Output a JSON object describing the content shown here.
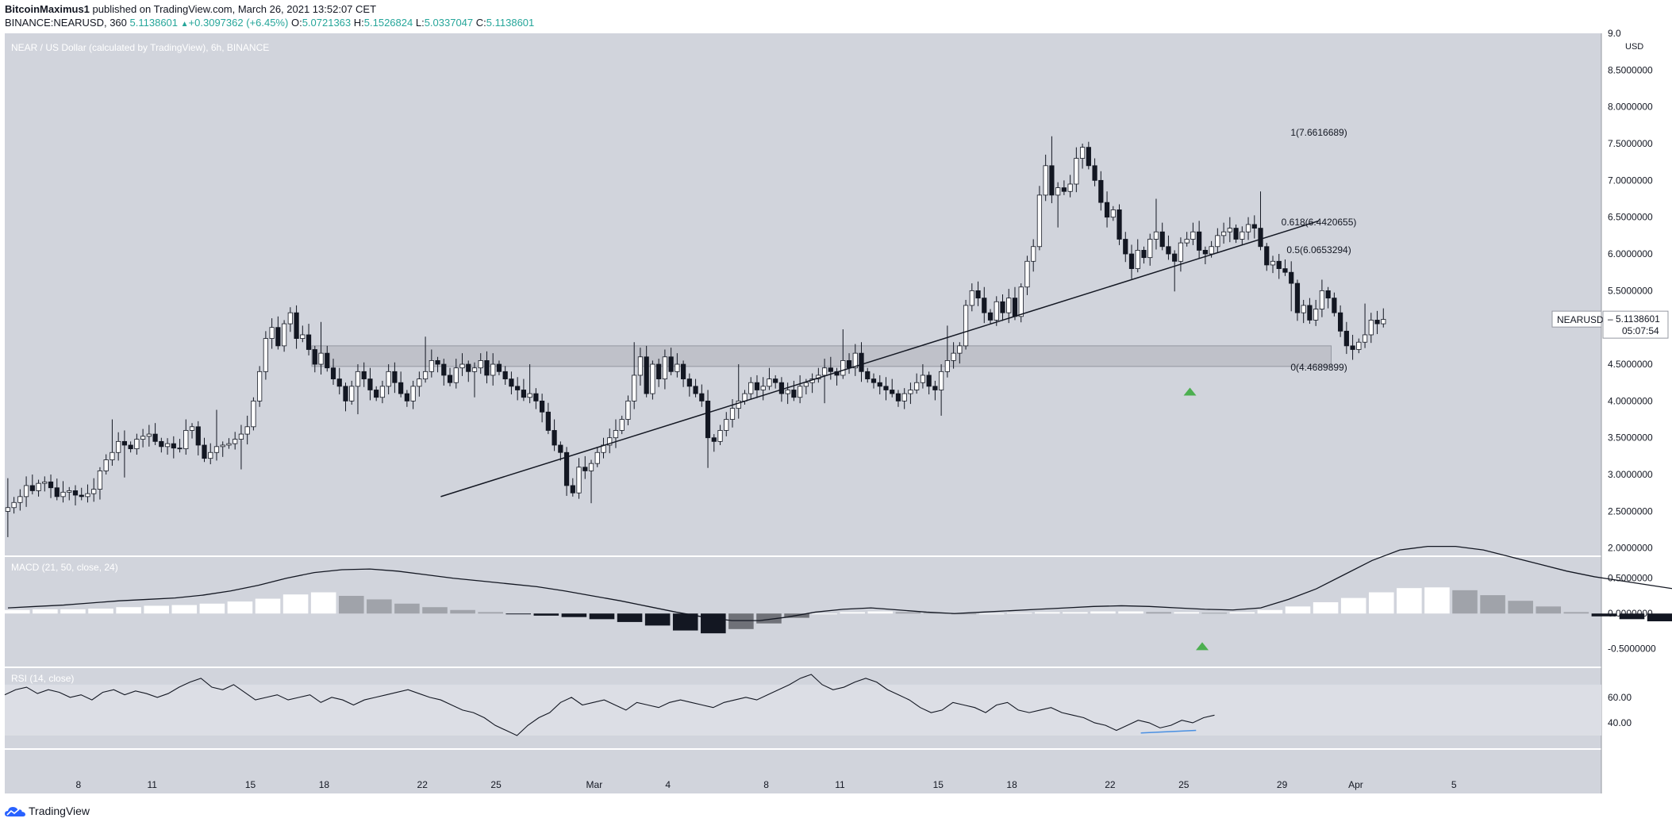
{
  "header": {
    "author": "BitcoinMaximus1",
    "published_text": " published on TradingView.com, March 26, 2021 13:52:07 CET",
    "symbol": "BINANCE:NEARUSD, 360",
    "last": "5.1138601",
    "change": "+0.3097362 (+6.45%)",
    "o_label": "O:",
    "o": "5.0721363",
    "h_label": "H:",
    "h": "5.1526824",
    "l_label": "L:",
    "l": "5.0337047",
    "c_label": "C:",
    "c": "5.1138601"
  },
  "footer": {
    "brand": "TradingView"
  },
  "colors": {
    "pane_bg": "#d1d4dc",
    "rsi_band": "#dcdee5",
    "axis_bg": "#ffffff",
    "candle_up": "#ffffff",
    "candle_down": "#131722",
    "wick": "#131722",
    "zone": "#b8bbc3",
    "arrow": "#4caf50",
    "divergence": "#4a90e2"
  },
  "chart_data": [
    {
      "type": "candlestick",
      "title": "NEAR / US Dollar (calculated by TradingView), 6h, BINANCE",
      "y_unit": "USD",
      "ylim": [
        1.9,
        9.0
      ],
      "yticks": [
        "2.0000000",
        "2.5000000",
        "3.0000000",
        "3.5000000",
        "4.0000000",
        "4.5000000",
        "5.0000000",
        "5.5000000",
        "6.0000000",
        "6.5000000",
        "7.0000000",
        "7.5000000",
        "8.0000000",
        "8.5000000",
        "9.0"
      ],
      "x_ticks": [
        "8",
        "11",
        "15",
        "18",
        "22",
        "25",
        "Mar",
        "4",
        "8",
        "11",
        "15",
        "18",
        "22",
        "25",
        "29",
        "Apr",
        "5"
      ],
      "x_tick_dates": [
        "2021-02-08",
        "2021-02-11",
        "2021-02-15",
        "2021-02-18",
        "2021-02-22",
        "2021-02-25",
        "2021-03-01",
        "2021-03-04",
        "2021-03-08",
        "2021-03-11",
        "2021-03-15",
        "2021-03-18",
        "2021-03-22",
        "2021-03-25",
        "2021-03-29",
        "2021-04-01",
        "2021-04-05"
      ],
      "x_range": [
        "2021-02-05",
        "2021-04-11"
      ],
      "close_series": {
        "start": "2021-02-05T00:00",
        "interval_hours": 6,
        "values": [
          2.55,
          2.62,
          2.7,
          2.85,
          2.78,
          2.88,
          2.9,
          2.82,
          2.7,
          2.76,
          2.78,
          2.72,
          2.7,
          2.74,
          2.8,
          3.05,
          3.2,
          3.3,
          3.45,
          3.4,
          3.35,
          3.48,
          3.52,
          3.55,
          3.45,
          3.38,
          3.42,
          3.36,
          3.35,
          3.6,
          3.65,
          3.4,
          3.22,
          3.3,
          3.38,
          3.4,
          3.42,
          3.48,
          3.55,
          3.65,
          4.0,
          4.4,
          4.85,
          5.0,
          4.75,
          5.05,
          5.2,
          4.85,
          4.9,
          4.7,
          4.5,
          4.65,
          4.45,
          4.3,
          4.2,
          4.0,
          4.2,
          4.4,
          4.3,
          4.15,
          4.05,
          4.2,
          4.4,
          4.25,
          4.1,
          4.0,
          4.2,
          4.3,
          4.4,
          4.55,
          4.5,
          4.35,
          4.25,
          4.45,
          4.5,
          4.4,
          4.45,
          4.55,
          4.35,
          4.5,
          4.4,
          4.3,
          4.2,
          4.15,
          4.05,
          4.1,
          4.0,
          3.85,
          3.6,
          3.4,
          3.3,
          2.85,
          2.75,
          3.1,
          3.05,
          3.15,
          3.3,
          3.4,
          3.5,
          3.6,
          3.75,
          4.0,
          4.35,
          4.6,
          4.1,
          4.5,
          4.3,
          4.6,
          4.4,
          4.5,
          4.3,
          4.2,
          4.1,
          4.0,
          3.5,
          3.45,
          3.6,
          3.75,
          3.9,
          4.0,
          4.1,
          4.25,
          4.15,
          4.2,
          4.3,
          4.25,
          4.1,
          4.15,
          4.05,
          4.2,
          4.25,
          4.3,
          4.35,
          4.45,
          4.4,
          4.35,
          4.55,
          4.45,
          4.65,
          4.4,
          4.3,
          4.25,
          4.2,
          4.15,
          4.1,
          4.0,
          4.1,
          4.15,
          4.25,
          4.35,
          4.2,
          4.15,
          4.4,
          4.55,
          4.65,
          4.75,
          5.3,
          5.5,
          5.4,
          5.2,
          5.1,
          5.35,
          5.2,
          5.4,
          5.15,
          5.55,
          5.9,
          6.1,
          6.8,
          7.2,
          6.8,
          6.9,
          6.85,
          6.95,
          7.3,
          7.45,
          7.2,
          7.0,
          6.7,
          6.5,
          6.6,
          6.2,
          6.0,
          5.8,
          6.05,
          5.95,
          6.2,
          6.3,
          6.1,
          6.0,
          5.9,
          6.15,
          6.2,
          6.3,
          6.05,
          6.0,
          6.1,
          6.25,
          6.3,
          6.35,
          6.2,
          6.3,
          6.4,
          6.35,
          6.1,
          5.85,
          5.9,
          5.8,
          5.75,
          5.6,
          5.2,
          5.3,
          5.1,
          5.25,
          5.5,
          5.4,
          5.2,
          4.95,
          4.75,
          4.7,
          4.8,
          4.9,
          5.1,
          5.05,
          5.11
        ]
      },
      "annotations": [
        {
          "type": "trendline",
          "from": [
            "2021-02-22T18:00",
            2.7
          ],
          "to": [
            "2021-03-30T12:00",
            6.45
          ]
        },
        {
          "type": "zone",
          "from": "2021-02-17T12:00",
          "to": "2021-03-31T00:00",
          "low": 4.47,
          "high": 4.75
        },
        {
          "type": "arrow",
          "date": "2021-03-25T06:00",
          "price": 4.15
        }
      ],
      "fibonacci": [
        {
          "label": "1(7.6616689)",
          "value": 7.6616689
        },
        {
          "label": "0.618(6.4420655)",
          "value": 6.4420655
        },
        {
          "label": "0.5(6.0653294)",
          "value": 6.0653294
        },
        {
          "label": "0(4.4689899)",
          "value": 4.4689899
        }
      ],
      "last_price": {
        "label": "NEARUSD",
        "value": "5.1138601",
        "countdown": "05:07:54"
      }
    },
    {
      "type": "bar+line",
      "title": "MACD (21, 50, close, 24)",
      "ylim": [
        -0.75,
        0.8
      ],
      "yticks": [
        "0.5000000",
        "0.0000000",
        "-0.5000000"
      ],
      "series": [
        {
          "name": "MACD",
          "values": [
            0.08,
            0.1,
            0.12,
            0.15,
            0.18,
            0.2,
            0.22,
            0.26,
            0.32,
            0.4,
            0.5,
            0.58,
            0.62,
            0.63,
            0.6,
            0.55,
            0.5,
            0.46,
            0.42,
            0.38,
            0.32,
            0.25,
            0.18,
            0.1,
            0.02,
            -0.05,
            -0.1,
            -0.1,
            -0.05,
            0.02,
            0.06,
            0.08,
            0.05,
            0.02,
            0.0,
            0.02,
            0.04,
            0.06,
            0.08,
            0.1,
            0.11,
            0.1,
            0.08,
            0.06,
            0.05,
            0.08,
            0.2,
            0.35,
            0.55,
            0.75,
            0.9,
            0.95,
            0.95,
            0.9,
            0.8,
            0.7,
            0.6,
            0.52,
            0.46,
            0.4,
            0.34,
            0.26,
            0.18,
            0.1,
            0.0,
            -0.08,
            -0.15,
            -0.22,
            -0.25
          ]
        },
        {
          "name": "Histogram",
          "values": [
            0.05,
            0.06,
            0.06,
            0.07,
            0.09,
            0.11,
            0.12,
            0.14,
            0.17,
            0.21,
            0.27,
            0.3,
            0.25,
            0.2,
            0.14,
            0.09,
            0.05,
            0.02,
            -0.01,
            -0.03,
            -0.05,
            -0.08,
            -0.12,
            -0.17,
            -0.24,
            -0.28,
            -0.22,
            -0.14,
            -0.06,
            0.0,
            0.02,
            0.03,
            0.02,
            0.01,
            0.0,
            0.0,
            0.01,
            0.02,
            0.02,
            0.03,
            0.03,
            0.02,
            0.02,
            0.01,
            0.02,
            0.05,
            0.1,
            0.16,
            0.22,
            0.3,
            0.36,
            0.37,
            0.33,
            0.26,
            0.18,
            0.1,
            0.02,
            -0.04,
            -0.08,
            -0.11,
            -0.13,
            -0.15,
            -0.17,
            -0.19,
            -0.22,
            -0.25,
            -0.28,
            -0.3,
            -0.27
          ]
        }
      ],
      "arrow": {
        "date": "2021-03-25T18:00",
        "value": -0.44
      }
    },
    {
      "type": "line",
      "title": "RSI (14, close)",
      "ylim": [
        20,
        83
      ],
      "band": [
        30,
        70
      ],
      "yticks": [
        "60.00",
        "40.00"
      ],
      "series": [
        {
          "name": "RSI",
          "values": [
            62,
            66,
            68,
            63,
            66,
            64,
            60,
            62,
            58,
            64,
            66,
            62,
            65,
            63,
            60,
            63,
            68,
            72,
            75,
            68,
            66,
            70,
            64,
            58,
            60,
            62,
            58,
            60,
            62,
            56,
            60,
            58,
            54,
            58,
            60,
            62,
            64,
            66,
            63,
            60,
            58,
            54,
            50,
            48,
            44,
            38,
            34,
            30,
            38,
            44,
            48,
            56,
            60,
            54,
            56,
            58,
            54,
            50,
            56,
            54,
            52,
            56,
            58,
            56,
            54,
            52,
            56,
            58,
            60,
            58,
            62,
            66,
            70,
            75,
            78,
            70,
            66,
            68,
            72,
            75,
            72,
            66,
            62,
            58,
            52,
            48,
            50,
            56,
            54,
            52,
            48,
            54,
            56,
            50,
            48,
            50,
            52,
            48,
            46,
            44,
            40,
            38,
            34,
            38,
            42,
            40,
            36,
            38,
            42,
            40,
            44,
            46
          ]
        }
      ],
      "divergence": {
        "from": [
          "2021-03-23T06:00",
          32
        ],
        "to": [
          "2021-03-25T12:00",
          34
        ]
      }
    }
  ]
}
